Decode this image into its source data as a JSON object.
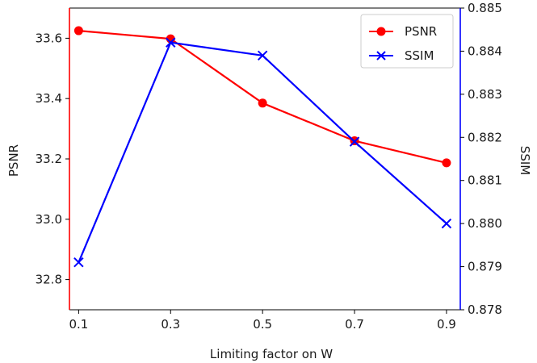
{
  "chart_data": {
    "type": "line",
    "xlabel": "Limiting factor on W",
    "ylabel_left": "PSNR",
    "ylabel_right": "SSIM",
    "categories": [
      "0.1",
      "0.3",
      "0.5",
      "0.7",
      "0.9"
    ],
    "x": [
      0.1,
      0.3,
      0.5,
      0.7,
      0.9
    ],
    "xlim": [
      0.08,
      0.93
    ],
    "ylim_left": [
      32.7,
      33.7
    ],
    "ylim_right": [
      0.878,
      0.885
    ],
    "yticks_left": [
      "32.8",
      "33.0",
      "33.2",
      "33.4",
      "33.6"
    ],
    "yticks_left_values": [
      32.8,
      33.0,
      33.2,
      33.4,
      33.6
    ],
    "yticks_right": [
      "0.878",
      "0.879",
      "0.880",
      "0.881",
      "0.882",
      "0.883",
      "0.884",
      "0.885"
    ],
    "yticks_right_values": [
      0.878,
      0.879,
      0.88,
      0.881,
      0.882,
      0.883,
      0.884,
      0.885
    ],
    "left_axis_color": "#ff0000",
    "right_axis_color": "#0000ff",
    "legend_position": "top-right",
    "series": [
      {
        "name": "PSNR",
        "axis": "left",
        "color": "#ff0000",
        "marker": "circle",
        "values": [
          33.625,
          33.598,
          33.385,
          33.26,
          33.187
        ]
      },
      {
        "name": "SSIM",
        "axis": "right",
        "color": "#0000ff",
        "marker": "x",
        "values": [
          0.8791,
          0.8842,
          0.8839,
          0.8819,
          0.88
        ]
      }
    ]
  }
}
